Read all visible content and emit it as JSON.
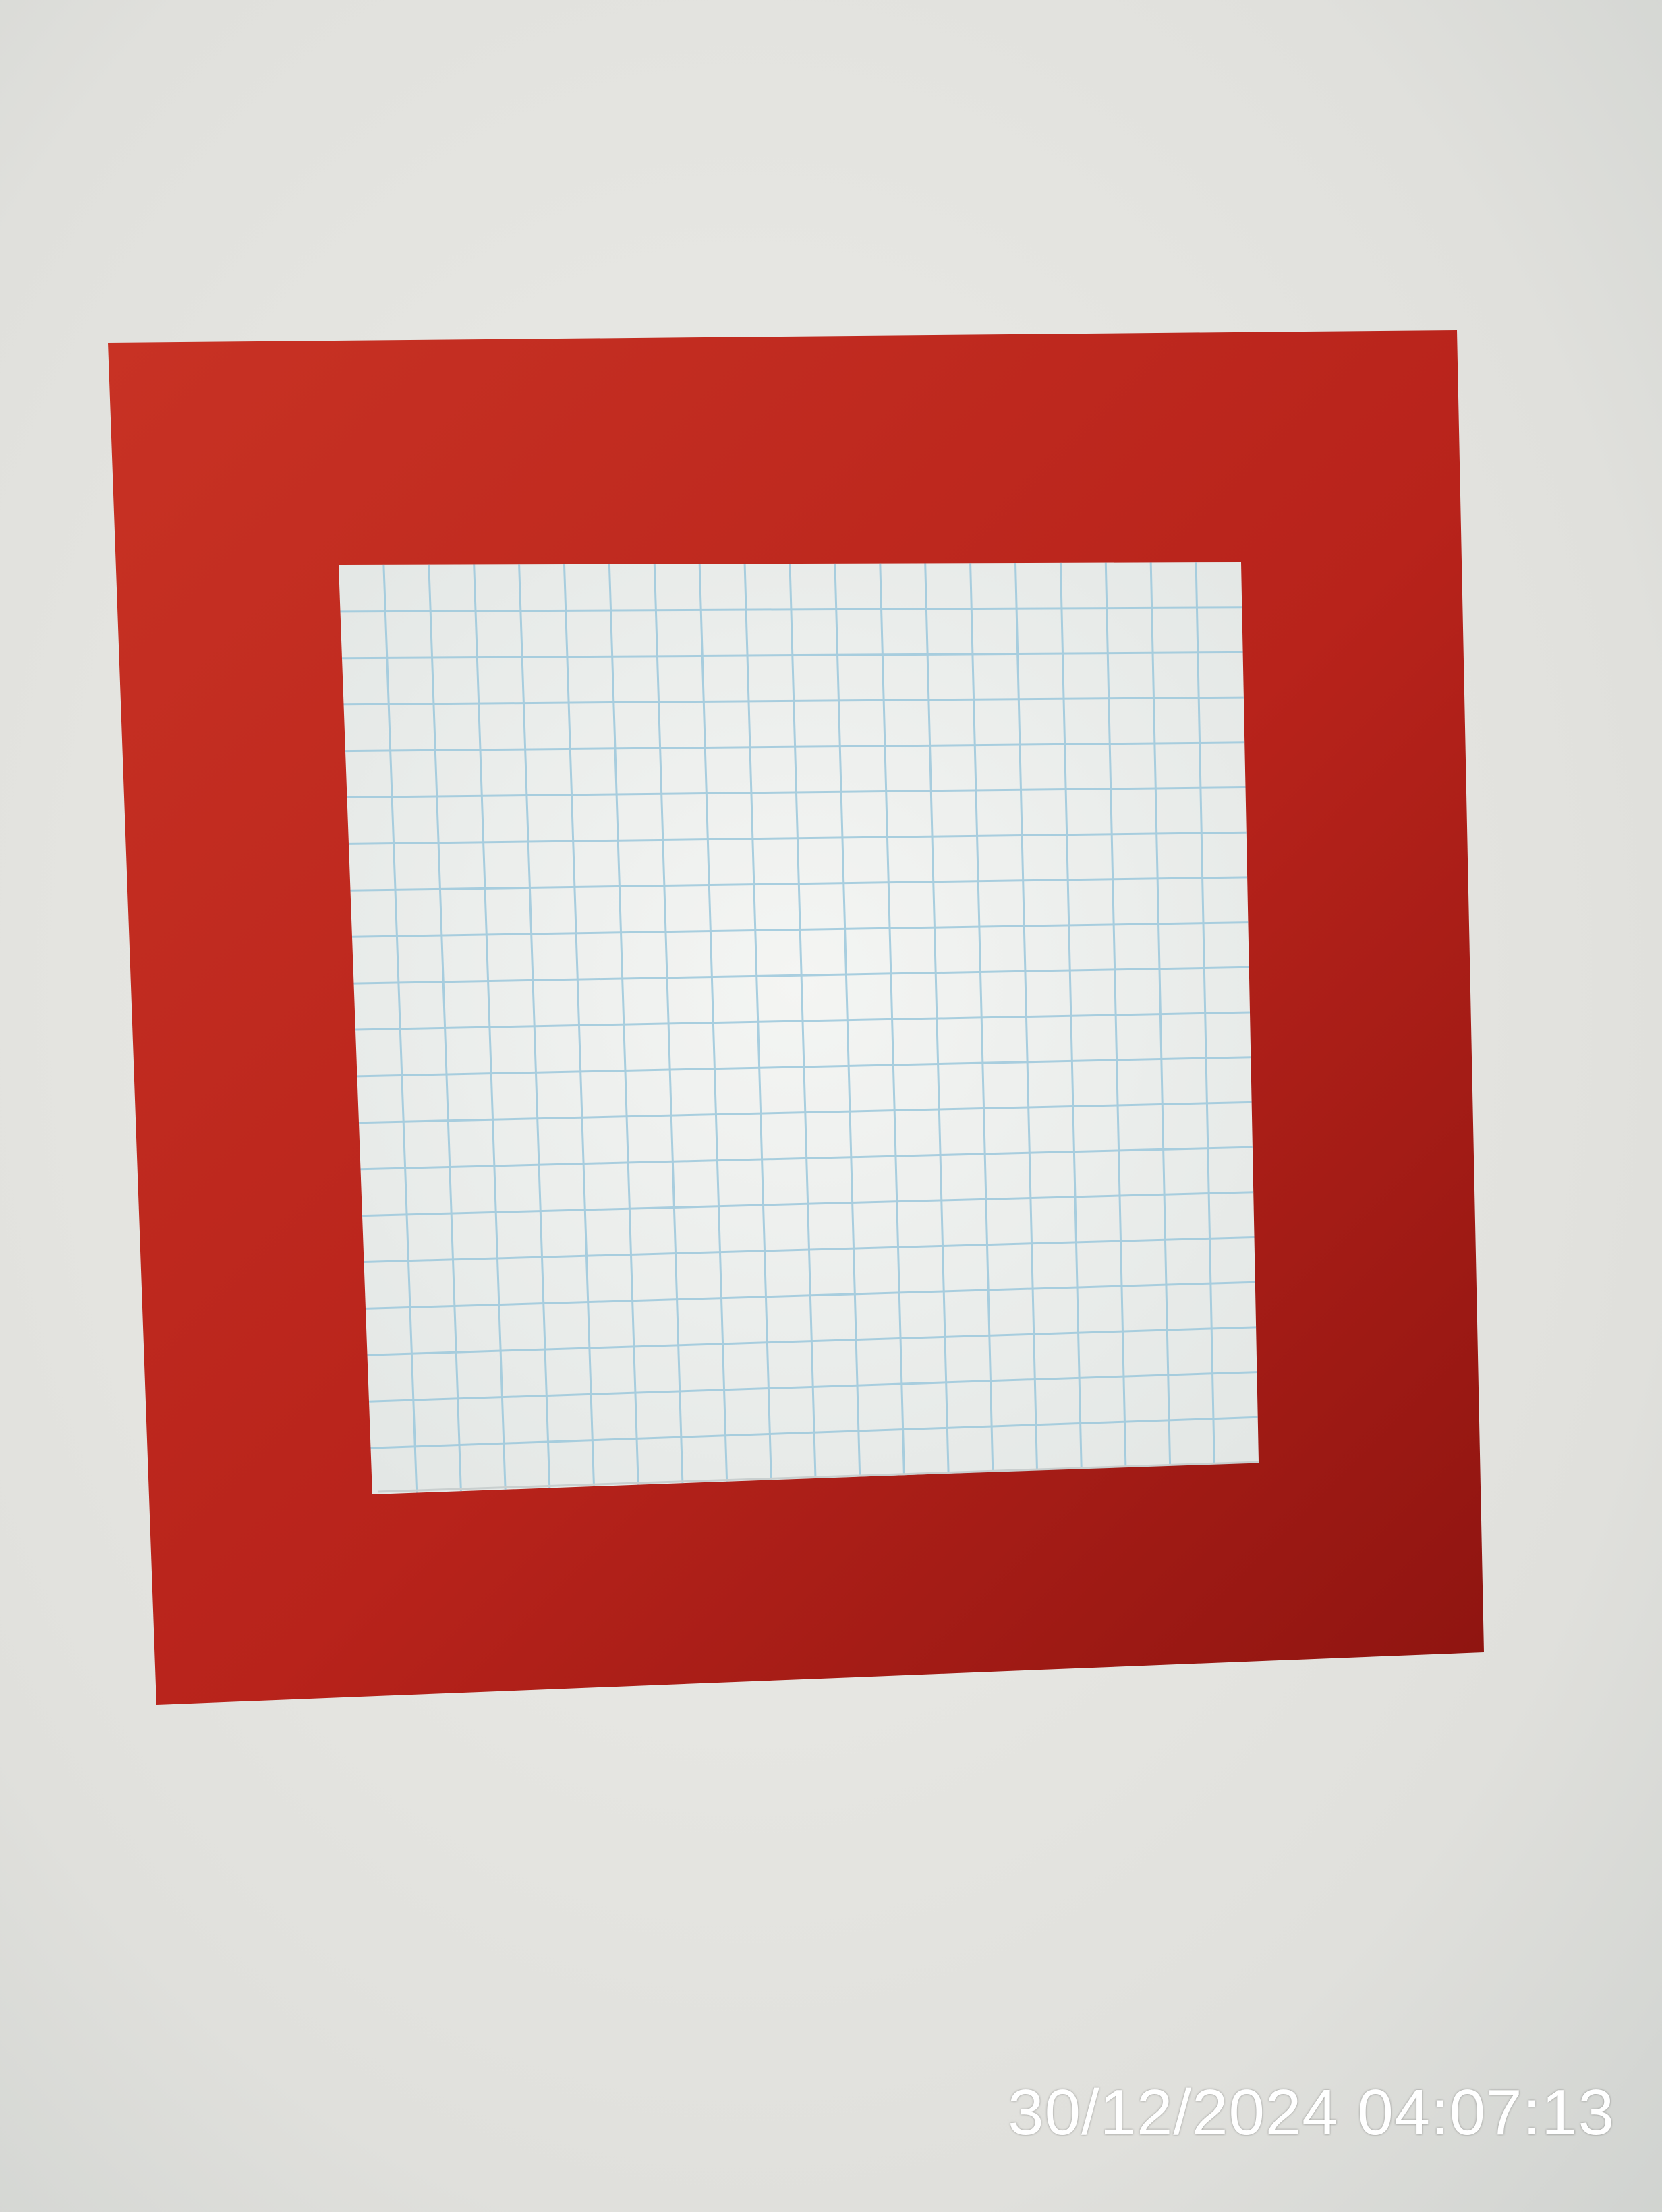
{
  "photo": {
    "timestamp": "30/12/2024 04:07:13"
  },
  "colors": {
    "background": "#e2e2de",
    "red_card": "#b8231b",
    "grid_paper": "#eef0ee",
    "grid_line": "#9cc8dc",
    "timestamp_text": "#ffffff"
  },
  "objects": {
    "red_frame": "red paper square",
    "grid_sheet": "graph paper square",
    "grid_columns": 20,
    "grid_rows": 20
  }
}
